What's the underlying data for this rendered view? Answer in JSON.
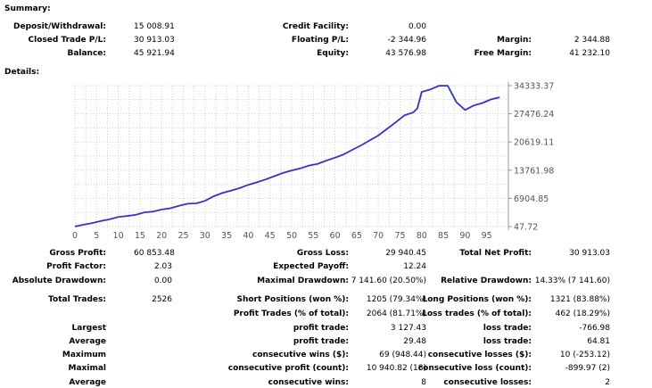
{
  "sections": {
    "summary": "Summary:",
    "details": "Details:"
  },
  "summary": {
    "deposit_label": "Deposit/Withdrawal:",
    "deposit_value": "15 008.91",
    "credit_label": "Credit Facility:",
    "credit_value": "0.00",
    "closed_label": "Closed Trade P/L:",
    "closed_value": "30 913.03",
    "floating_label": "Floating P/L:",
    "floating_value": "-2 344.96",
    "margin_label": "Margin:",
    "margin_value": "2 344.88",
    "balance_label": "Balance:",
    "balance_value": "45 921.94",
    "equity_label": "Equity:",
    "equity_value": "43 576.98",
    "free_margin_label": "Free Margin:",
    "free_margin_value": "41 232.10"
  },
  "chart_data": {
    "type": "line",
    "title": "",
    "xlabel": "",
    "ylabel": "",
    "x_ticks": [
      "0",
      "5",
      "10",
      "15",
      "20",
      "25",
      "30",
      "35",
      "40",
      "45",
      "50",
      "55",
      "60",
      "65",
      "70",
      "75",
      "80",
      "85",
      "90",
      "95"
    ],
    "y_ticks": [
      "34333.37",
      "27476.24",
      "20619.11",
      "13761.98",
      "6904.85",
      "47.72"
    ],
    "xlim": [
      0,
      100
    ],
    "ylim": [
      47.72,
      34333.37
    ],
    "grid": true,
    "line_color": "#3333cc",
    "series": [
      {
        "x": [
          0,
          2,
          4,
          6,
          8,
          10,
          12,
          14,
          16,
          18,
          20,
          22,
          24,
          26,
          28,
          30,
          32,
          34,
          36,
          38,
          40,
          42,
          44,
          46,
          48,
          50,
          52,
          54,
          56,
          58,
          60,
          62,
          64,
          66,
          68,
          70,
          72,
          74,
          76,
          78,
          79,
          80,
          82,
          84,
          86,
          88,
          90,
          92,
          94,
          96,
          98
        ],
        "y": [
          48,
          500,
          900,
          1400,
          1800,
          2400,
          2600,
          2900,
          3500,
          3700,
          4200,
          4500,
          5100,
          5600,
          5700,
          6300,
          7400,
          8200,
          8800,
          9400,
          10200,
          10800,
          11500,
          12300,
          13100,
          13700,
          14200,
          14900,
          15300,
          16100,
          16800,
          17600,
          18700,
          19800,
          21000,
          22200,
          23800,
          25400,
          27100,
          27800,
          28800,
          32800,
          33400,
          34300,
          34300,
          30300,
          28400,
          29500,
          30100,
          31000,
          31500
        ]
      }
    ]
  },
  "stats": {
    "gross_profit_label": "Gross Profit:",
    "gross_profit_value": "60 853.48",
    "gross_loss_label": "Gross Loss:",
    "gross_loss_value": "29 940.45",
    "total_net_profit_label": "Total Net Profit:",
    "total_net_profit_value": "30 913.03",
    "profit_factor_label": "Profit Factor:",
    "profit_factor_value": "2.03",
    "expected_payoff_label": "Expected Payoff:",
    "expected_payoff_value": "12.24",
    "absolute_drawdown_label": "Absolute Drawdown:",
    "absolute_drawdown_value": "0.00",
    "maximal_drawdown_label": "Maximal Drawdown:",
    "maximal_drawdown_value": "7 141.60 (20.50%)",
    "relative_drawdown_label": "Relative Drawdown:",
    "relative_drawdown_value": "14.33% (7 141.60)",
    "total_trades_label": "Total Trades:",
    "total_trades_value": "2526",
    "short_positions_label": "Short Positions (won %):",
    "short_positions_value": "1205 (79.34%)",
    "long_positions_label": "Long Positions (won %):",
    "long_positions_value": "1321 (83.88%)",
    "profit_trades_label": "Profit Trades (% of total):",
    "profit_trades_value": "2064 (81.71%)",
    "loss_trades_label": "Loss trades (% of total):",
    "loss_trades_value": "462 (18.29%)",
    "largest_label": "Largest",
    "largest_profit_label": "profit trade:",
    "largest_profit_value": "3 127.43",
    "largest_loss_label": "loss trade:",
    "largest_loss_value": "-766.98",
    "average_label": "Average",
    "average_profit_label": "profit trade:",
    "average_profit_value": "29.48",
    "average_loss_label": "loss trade:",
    "average_loss_value": "64.81",
    "maximum_label": "Maximum",
    "max_cons_wins_label": "consecutive wins ($):",
    "max_cons_wins_value": "69 (948.44)",
    "max_cons_losses_label": "consecutive losses ($):",
    "max_cons_losses_value": "10 (-253.12)",
    "maximal_label": "Maximal",
    "max_cons_profit_label": "consecutive profit (count):",
    "max_cons_profit_value": "10 940.82 (18)",
    "max_cons_loss_label": "consecutive loss (count):",
    "max_cons_loss_value": "-899.97 (2)",
    "average2_label": "Average",
    "avg_cons_wins_label": "consecutive wins:",
    "avg_cons_wins_value": "8",
    "avg_cons_losses_label": "consecutive losses:",
    "avg_cons_losses_value": "2"
  }
}
